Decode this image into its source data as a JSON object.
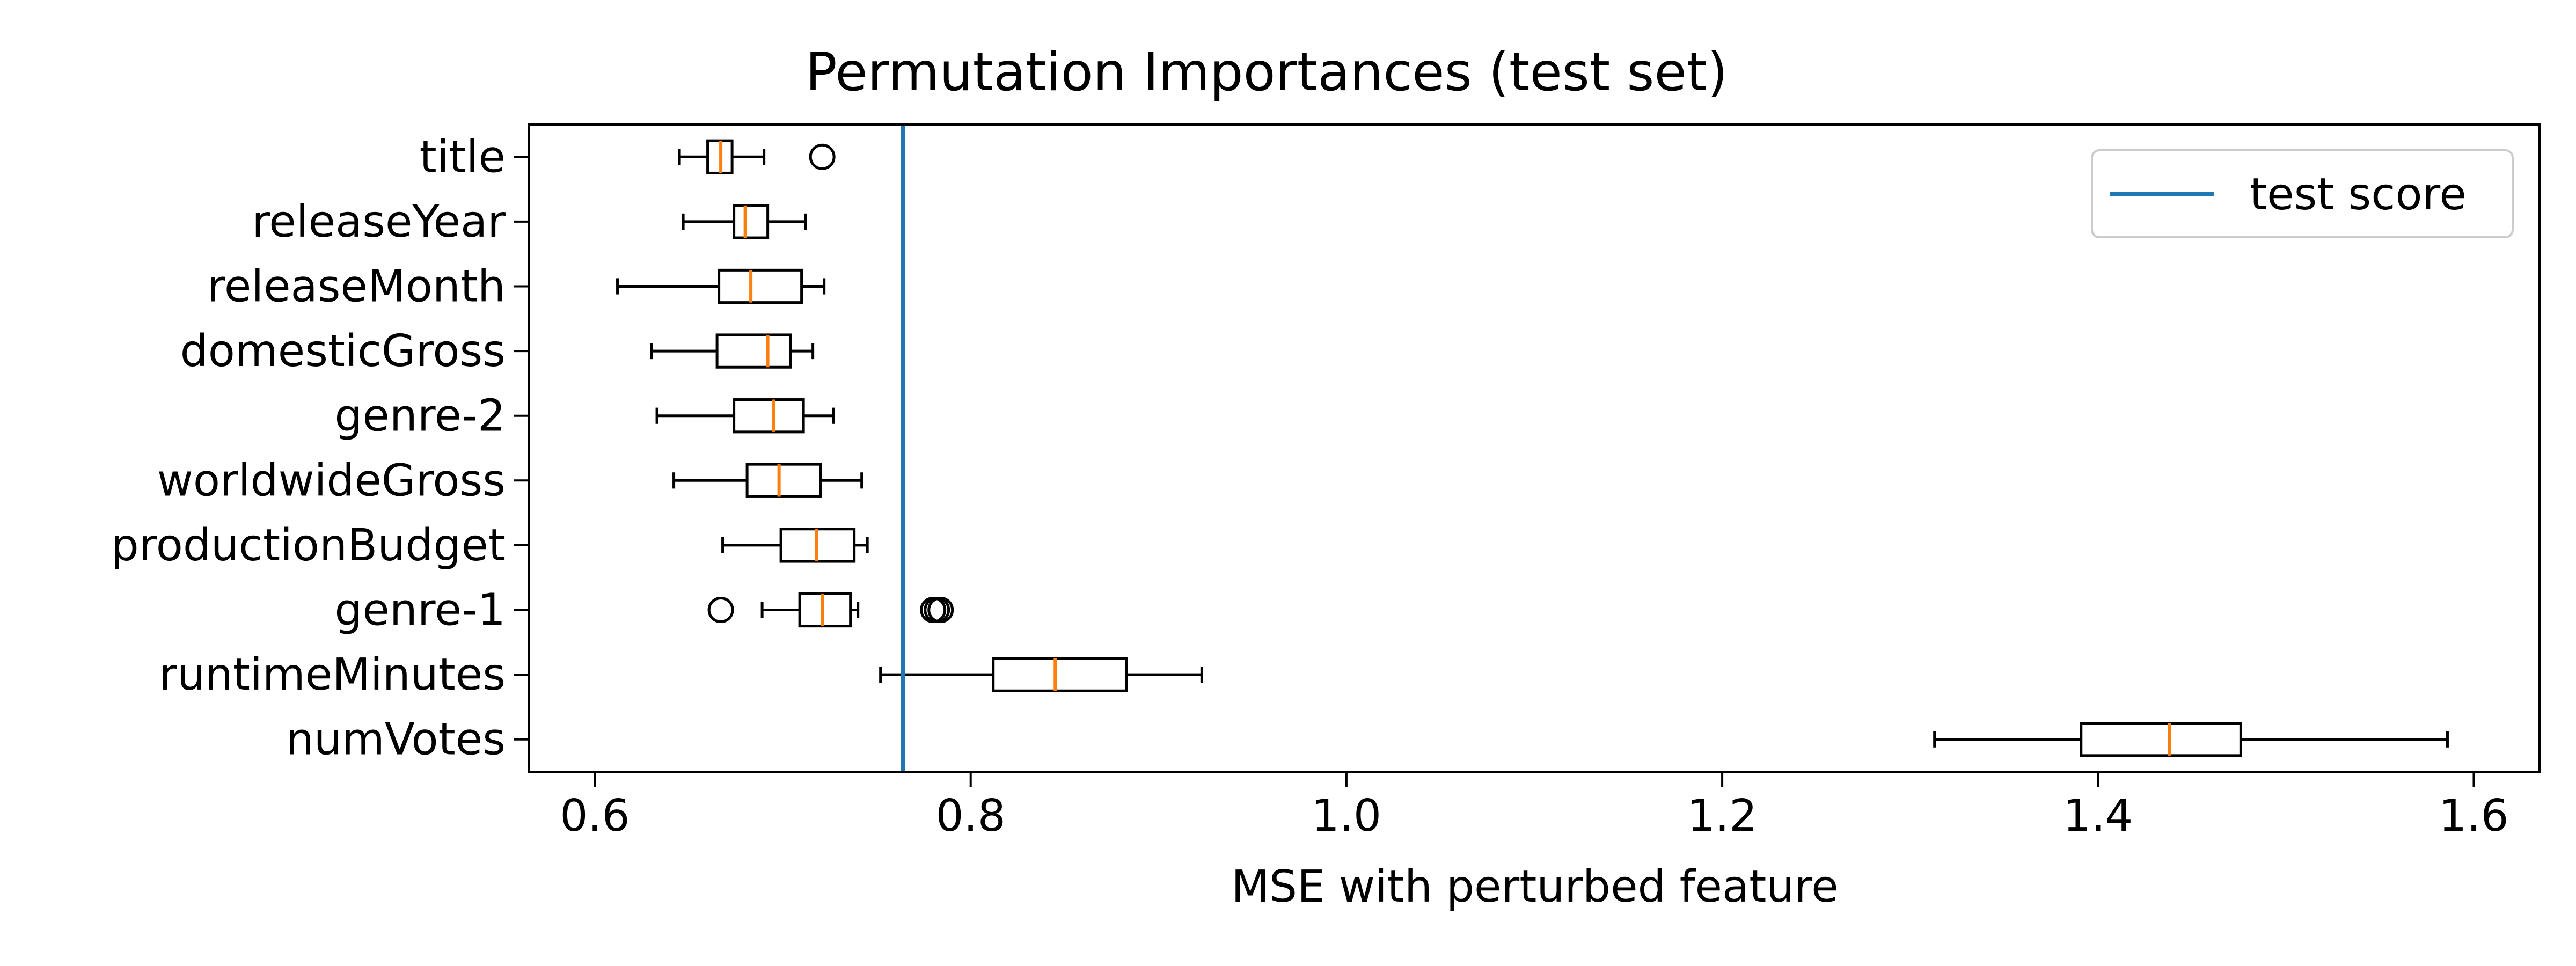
{
  "chart_data": {
    "type": "boxplot",
    "orientation": "horizontal",
    "title": "Permutation Importances (test set)",
    "xlabel": "MSE with perturbed feature",
    "ylabel": "",
    "xlim": [
      0.565,
      1.635
    ],
    "xticks": [
      0.6,
      0.8,
      1.0,
      1.2,
      1.4,
      1.6
    ],
    "xtick_labels": [
      "0.6",
      "0.8",
      "1.0",
      "1.2",
      "1.4",
      "1.6"
    ],
    "grid": false,
    "reference_line": {
      "name": "test score",
      "value": 0.764,
      "color": "#1f77b4"
    },
    "legend": {
      "position": "upper right",
      "entries": [
        "test score"
      ]
    },
    "box_color": "#000000",
    "median_color": "#ff7f0e",
    "series": [
      {
        "name": "title",
        "whisker_low": 0.645,
        "q1": 0.66,
        "median": 0.667,
        "q3": 0.673,
        "whisker_high": 0.69,
        "outliers": [
          0.721
        ]
      },
      {
        "name": "releaseYear",
        "whisker_low": 0.647,
        "q1": 0.674,
        "median": 0.68,
        "q3": 0.692,
        "whisker_high": 0.712,
        "outliers": []
      },
      {
        "name": "releaseMonth",
        "whisker_low": 0.612,
        "q1": 0.666,
        "median": 0.683,
        "q3": 0.71,
        "whisker_high": 0.722,
        "outliers": []
      },
      {
        "name": "domesticGross",
        "whisker_low": 0.63,
        "q1": 0.665,
        "median": 0.692,
        "q3": 0.704,
        "whisker_high": 0.716,
        "outliers": []
      },
      {
        "name": "genre-2",
        "whisker_low": 0.633,
        "q1": 0.674,
        "median": 0.695,
        "q3": 0.711,
        "whisker_high": 0.727,
        "outliers": []
      },
      {
        "name": "worldwideGross",
        "whisker_low": 0.642,
        "q1": 0.681,
        "median": 0.698,
        "q3": 0.72,
        "whisker_high": 0.742,
        "outliers": []
      },
      {
        "name": "productionBudget",
        "whisker_low": 0.668,
        "q1": 0.699,
        "median": 0.718,
        "q3": 0.738,
        "whisker_high": 0.745,
        "outliers": []
      },
      {
        "name": "genre-1",
        "whisker_low": 0.689,
        "q1": 0.709,
        "median": 0.721,
        "q3": 0.736,
        "whisker_high": 0.74,
        "outliers": [
          0.667,
          0.78,
          0.782,
          0.784
        ]
      },
      {
        "name": "runtimeMinutes",
        "whisker_low": 0.752,
        "q1": 0.812,
        "median": 0.845,
        "q3": 0.883,
        "whisker_high": 0.923,
        "outliers": []
      },
      {
        "name": "numVotes",
        "whisker_low": 1.313,
        "q1": 1.391,
        "median": 1.438,
        "q3": 1.476,
        "whisker_high": 1.586,
        "outliers": []
      }
    ]
  }
}
